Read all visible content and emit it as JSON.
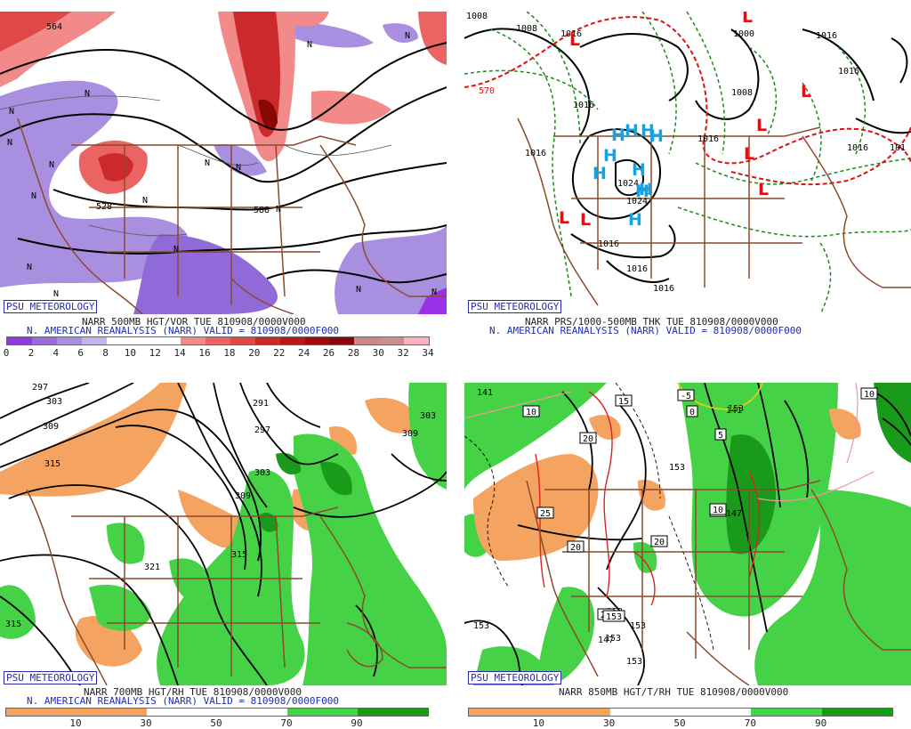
{
  "panels": [
    {
      "badge": "PSU METEOROLOGY",
      "caption_line1": "NARR 500MB HGT/VOR TUE 810908/0000V000",
      "caption_line2": "N. AMERICAN REANALYSIS (NARR) VALID = 810908/0000F000",
      "colorbar": {
        "labels": [
          "0",
          "2",
          "4",
          "6",
          "8",
          "10",
          "12",
          "14",
          "16",
          "18",
          "20",
          "22",
          "24",
          "26",
          "28",
          "30",
          "32",
          "34"
        ],
        "colors": [
          "#8f3cd8",
          "#9a6ad8",
          "#a98fe0",
          "#c2b6ea",
          "#ffffff",
          "#ffffff",
          "#ffffff",
          "#f28a8a",
          "#ea6464",
          "#e04848",
          "#cc2a2a",
          "#b81818",
          "#a00c0c",
          "#880808",
          "#cc8888",
          "#c89090",
          "#ffb0c0"
        ]
      },
      "contour_labels": [
        "564",
        "528",
        "588"
      ],
      "symbols": [
        "N",
        "N",
        "N",
        "N",
        "N",
        "N",
        "N",
        "N",
        "N",
        "N",
        "N",
        "N",
        "N",
        "N",
        "N",
        "N"
      ]
    },
    {
      "badge": "PSU METEOROLOGY",
      "caption_line1": "NARR PRS/1000-500MB THK TUE 810908/0000V000",
      "caption_line2": "N. AMERICAN REANALYSIS (NARR) VALID = 810908/0000F000",
      "contour_labels": [
        "1008",
        "1008",
        "1000",
        "1016",
        "1016",
        "1016",
        "1016",
        "1016",
        "1016",
        "1016",
        "1024",
        "1024",
        "1008",
        "1016",
        "1016",
        "1016",
        "570",
        "101"
      ],
      "highs": [
        "H",
        "H",
        "H",
        "H",
        "H",
        "H",
        "H",
        "H",
        "H",
        "H"
      ],
      "lows": [
        "L",
        "L",
        "L",
        "L",
        "L",
        "L",
        "L",
        "L"
      ]
    },
    {
      "badge": "PSU METEOROLOGY",
      "caption_line1": "NARR 700MB HGT/RH TUE 810908/0000V000",
      "caption_line2": "N. AMERICAN REANALYSIS (NARR) VALID = 810908/0000F000",
      "colorbar": {
        "labels": [
          "10",
          "30",
          "50",
          "70",
          "90"
        ],
        "colors": [
          "#f4a460",
          "#f4a460",
          "#ffffff",
          "#ffffff",
          "#46d246",
          "#1a9a1a"
        ]
      },
      "contour_labels": [
        "297",
        "303",
        "309",
        "315",
        "291",
        "297",
        "303",
        "309",
        "315",
        "321",
        "315",
        "303",
        "309"
      ]
    },
    {
      "badge": "PSU METEOROLOGY",
      "caption_line1": "NARR 850MB HGT/T/RH TUE 810908/0000V000",
      "caption_line2": "",
      "colorbar": {
        "labels": [
          "10",
          "30",
          "50",
          "70",
          "90"
        ],
        "colors": [
          "#f4a460",
          "#f4a460",
          "#ffffff",
          "#ffffff",
          "#46d246",
          "#1a9a1a"
        ]
      },
      "contour_labels": [
        "141",
        "153",
        "153",
        "153",
        "147",
        "153",
        "141",
        "147",
        "153",
        "153",
        "153"
      ],
      "temp_boxes": [
        "10",
        "15",
        "-5",
        "0",
        "5",
        "20",
        "25",
        "20",
        "20",
        "10",
        "25",
        "10",
        "10",
        "153"
      ]
    }
  ]
}
